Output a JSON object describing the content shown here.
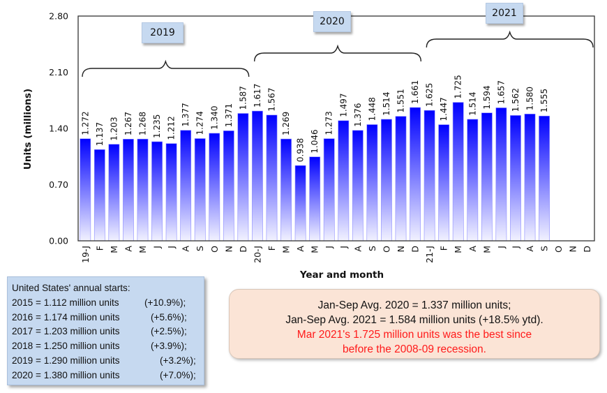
{
  "chart_data": {
    "type": "bar",
    "title": "",
    "xlabel": "Year and month",
    "ylabel": "Units (millions)",
    "ylim": [
      0,
      2.8
    ],
    "yticks": [
      "0.00",
      "0.70",
      "1.40",
      "2.10",
      "2.80"
    ],
    "grid": false,
    "categories": [
      "19-J",
      "F",
      "M",
      "A",
      "M",
      "J",
      "J",
      "A",
      "S",
      "O",
      "N",
      "D",
      "20-J",
      "F",
      "M",
      "A",
      "M",
      "J",
      "J",
      "A",
      "S",
      "O",
      "N",
      "D",
      "21-J",
      "F",
      "M",
      "A",
      "M",
      "J",
      "J",
      "A",
      "S",
      "O",
      "N",
      "D"
    ],
    "values": [
      1.272,
      1.137,
      1.203,
      1.267,
      1.268,
      1.235,
      1.212,
      1.377,
      1.274,
      1.34,
      1.371,
      1.587,
      1.617,
      1.567,
      1.269,
      0.938,
      1.046,
      1.273,
      1.497,
      1.376,
      1.448,
      1.514,
      1.551,
      1.661,
      1.625,
      1.447,
      1.725,
      1.514,
      1.594,
      1.657,
      1.562,
      1.58,
      1.555,
      null,
      null,
      null
    ],
    "value_labels": [
      "1.272",
      "1.137",
      "1.203",
      "1.267",
      "1.268",
      "1.235",
      "1.212",
      "1.377",
      "1.274",
      "1.340",
      "1.371",
      "1.587",
      "1.617",
      "1.567",
      "1.269",
      "0.938",
      "1.046",
      "1.273",
      "1.497",
      "1.376",
      "1.448",
      "1.514",
      "1.551",
      "1.661",
      "1.625",
      "1.447",
      "1.725",
      "1.514",
      "1.594",
      "1.657",
      "1.562",
      "1.580",
      "1.555",
      "",
      "",
      ""
    ],
    "bar_color_top": "#0000ff",
    "bar_color_bottom": "#f2f2ff",
    "year_groups": [
      {
        "label": "2019",
        "start_index": 0,
        "end_index": 11
      },
      {
        "label": "2020",
        "start_index": 12,
        "end_index": 23
      },
      {
        "label": "2021",
        "start_index": 24,
        "end_index": 35
      }
    ]
  },
  "annual_box": {
    "heading": "United States' annual starts:",
    "rows": [
      {
        "text": "2015 = 1.112 million units",
        "change": "(+10.9%);"
      },
      {
        "text": "2016 = 1.174 million units",
        "change": "(+5.6%);"
      },
      {
        "text": "2017 = 1.203 million units",
        "change": "(+2.5%);"
      },
      {
        "text": "2018 = 1.250 million units",
        "change": "(+3.9%);"
      },
      {
        "text": "2019 = 1.290 million units",
        "change": "(+3.2%);"
      },
      {
        "text": "2020 = 1.380 million units",
        "change": "(+7.0%);"
      }
    ]
  },
  "summary_box": {
    "line1": "Jan-Sep Avg. 2020 = 1.337 million units;",
    "line2": "Jan-Sep Avg. 2021 = 1.584 million units (+18.5% ytd).",
    "highlight1": "Mar 2021's 1.725 million units was the best since",
    "highlight2": "before the 2008-09 recession.",
    "highlight_color": "#ff1a1a"
  }
}
